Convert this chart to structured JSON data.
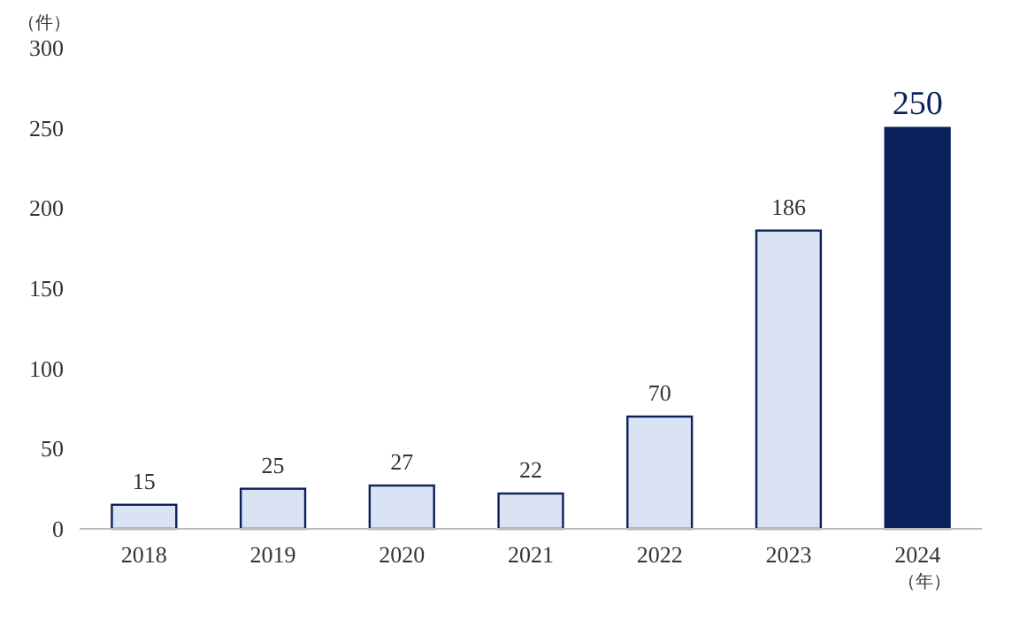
{
  "chart_data": {
    "type": "bar",
    "ylabel": "（件）",
    "xlabel": "（年）",
    "categories": [
      "2018",
      "2019",
      "2020",
      "2021",
      "2022",
      "2023",
      "2024"
    ],
    "values": [
      15,
      25,
      27,
      22,
      70,
      186,
      250
    ],
    "colors": [
      "#dae3f3",
      "#dae3f3",
      "#dae3f3",
      "#dae3f3",
      "#dae3f3",
      "#dae3f3",
      "#0a215c"
    ],
    "ylim": [
      0,
      300
    ],
    "yticks": [
      0,
      50,
      100,
      150,
      200,
      250,
      300
    ],
    "grid": false,
    "data_labels": true
  }
}
